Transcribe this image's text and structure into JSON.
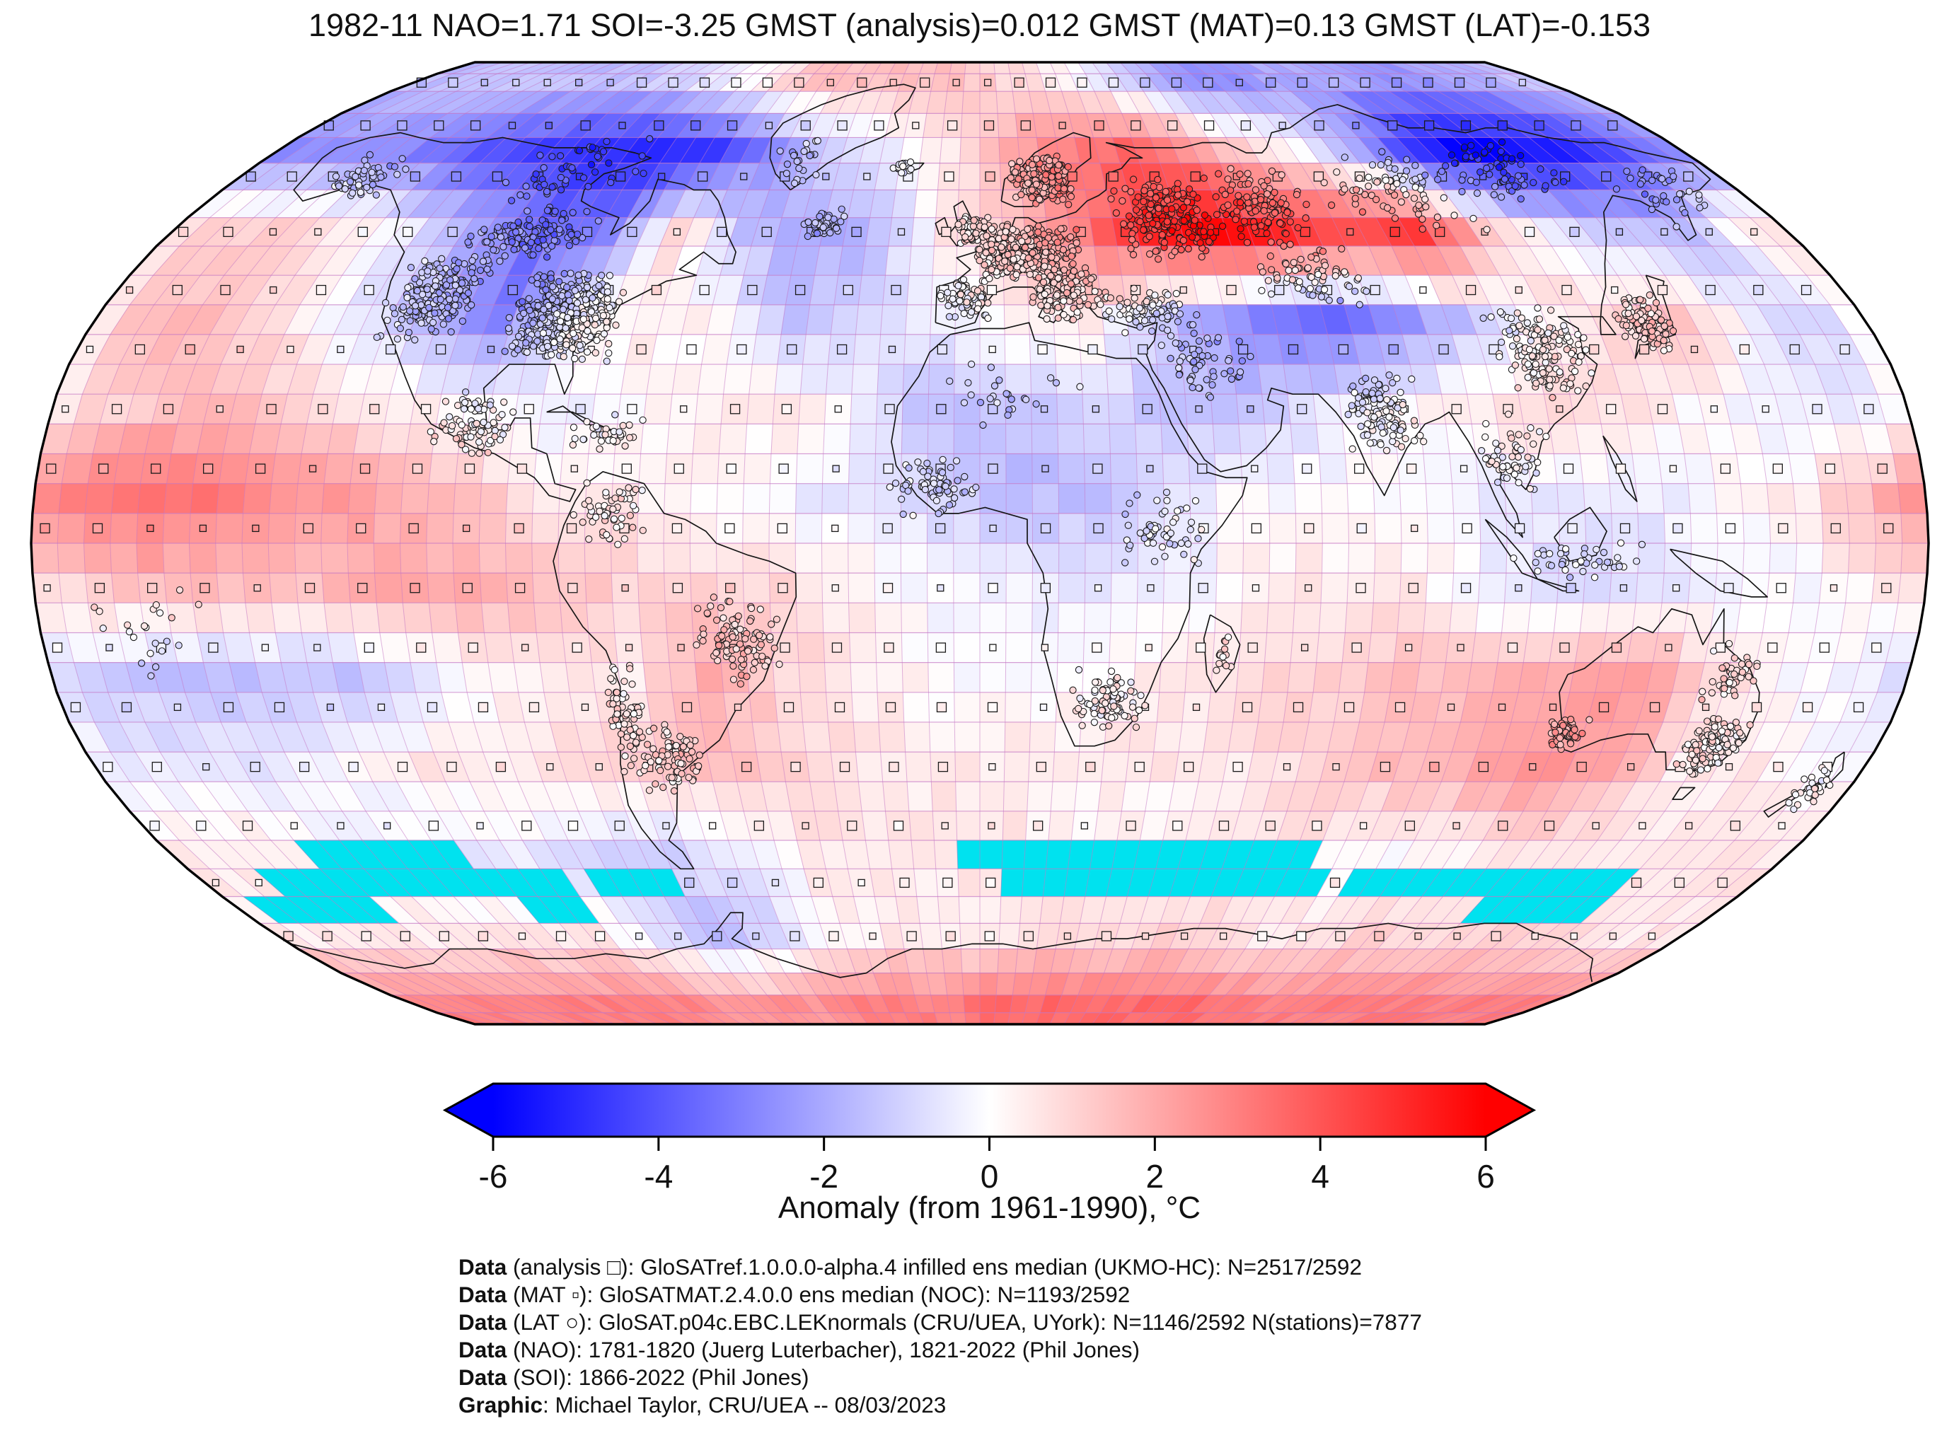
{
  "title": "1982-11 NAO=1.71 SOI=-3.25 GMST (analysis)=0.012 GMST (MAT)=0.13 GMST (LAT)=-0.153",
  "indices": {
    "date": "1982-11",
    "nao": 1.71,
    "soi": -3.25,
    "gmst_analysis": 0.012,
    "gmst_mat": 0.13,
    "gmst_lat": -0.153
  },
  "colorbar": {
    "label": "Anomaly (from 1961-1990), °C",
    "ticks": [
      -6,
      -4,
      -2,
      0,
      2,
      4,
      6
    ],
    "min": -6,
    "max": 6,
    "color_neg": "#0000ff",
    "color_mid": "#ffffff",
    "color_pos": "#ff0000"
  },
  "footer": {
    "lines": [
      {
        "label": "Data",
        "text": " (analysis □): GloSATref.1.0.0.0-alpha.4 infilled ens median (UKMO-HC): N=2517/2592"
      },
      {
        "label": "Data",
        "text": " (MAT ▫): GloSATMAT.2.4.0.0 ens median (NOC): N=1193/2592"
      },
      {
        "label": "Data",
        "text": " (LAT ○): GloSAT.p04c.EBC.LEKnormals (CRU/UEA, UYork): N=1146/2592 N(stations)=7877"
      },
      {
        "label": "Data",
        "text": " (NAO): 1781-1820 (Juerg Luterbacher), 1821-2022 (Phil Jones)"
      },
      {
        "label": "Data",
        "text": " (SOI): 1866-2022 (Phil Jones)"
      },
      {
        "label": "Graphic",
        "text": ": Michael Taylor, CRU/UEA -- 08/03/2023"
      }
    ]
  },
  "map": {
    "projection": "robinson",
    "graticule_deg": 5,
    "cell_deg": 5,
    "graticule_color": "#c478c4",
    "coast_color": "#161616",
    "border_color": "#9a9a9a",
    "outline_color": "#000000",
    "missing_color": "#00e2ef",
    "marker_stroke": "#1a1a1a",
    "missing_rects": [
      [
        -150,
        -115,
        -55,
        -50
      ],
      [
        -165,
        -100,
        -60,
        -55
      ],
      [
        -175,
        -145,
        -65,
        -60
      ],
      [
        -110,
        -95,
        -65,
        -55
      ],
      [
        -90,
        -70,
        -60,
        -55
      ],
      [
        -5,
        75,
        -55,
        -50
      ],
      [
        5,
        80,
        -60,
        -55
      ],
      [
        85,
        150,
        -60,
        -55
      ],
      [
        120,
        150,
        -65,
        -60
      ]
    ],
    "station_clusters": [
      [
        10,
        49,
        12,
        5,
        380
      ],
      [
        15,
        62,
        8,
        5,
        190
      ],
      [
        -2,
        53,
        4,
        3,
        85
      ],
      [
        -3,
        41,
        6,
        4,
        75
      ],
      [
        18,
        42,
        8,
        5,
        120
      ],
      [
        35,
        39,
        10,
        4,
        85
      ],
      [
        42,
        55,
        12,
        8,
        200
      ],
      [
        65,
        57,
        12,
        8,
        120
      ],
      [
        100,
        60,
        20,
        8,
        85
      ],
      [
        130,
        64,
        18,
        7,
        60
      ],
      [
        163,
        59,
        12,
        6,
        35
      ],
      [
        70,
        45,
        12,
        6,
        75
      ],
      [
        45,
        30,
        10,
        6,
        55
      ],
      [
        78,
        22,
        8,
        7,
        120
      ],
      [
        102,
        15,
        8,
        7,
        55
      ],
      [
        114,
        -3,
        14,
        4,
        45
      ],
      [
        112,
        32,
        10,
        8,
        150
      ],
      [
        135,
        37,
        6,
        5,
        130
      ],
      [
        -85,
        38,
        12,
        8,
        430
      ],
      [
        -113,
        41,
        10,
        8,
        200
      ],
      [
        -100,
        52,
        15,
        5,
        110
      ],
      [
        -100,
        63,
        18,
        8,
        55
      ],
      [
        -150,
        62,
        9,
        5,
        45
      ],
      [
        -98,
        20,
        8,
        6,
        80
      ],
      [
        -72,
        19,
        8,
        4,
        35
      ],
      [
        -70,
        5,
        8,
        6,
        55
      ],
      [
        -70,
        -30,
        4,
        12,
        65
      ],
      [
        -46,
        -16,
        9,
        8,
        100
      ],
      [
        -62,
        -36,
        7,
        7,
        75
      ],
      [
        -8,
        10,
        10,
        6,
        70
      ],
      [
        35,
        2,
        8,
        8,
        55
      ],
      [
        25,
        -27,
        8,
        6,
        85
      ],
      [
        5,
        25,
        15,
        6,
        25
      ],
      [
        47,
        -19,
        2,
        4,
        14
      ],
      [
        147,
        -34,
        6,
        5,
        120
      ],
      [
        117,
        -32,
        4,
        3,
        55
      ],
      [
        146,
        -22,
        6,
        6,
        45
      ],
      [
        172,
        -41,
        4,
        4,
        30
      ],
      [
        -45,
        65,
        8,
        5,
        22
      ],
      [
        -19,
        64.5,
        3,
        1.5,
        14
      ],
      [
        -160,
        -15,
        15,
        8,
        22
      ],
      [
        -35,
        54,
        5,
        3,
        55
      ]
    ]
  },
  "chart_data": {
    "type": "heatmap",
    "title": "1982-11 NAO=1.71 SOI=-3.25 GMST (analysis)=0.012 GMST (MAT)=0.13 GMST (LAT)=-0.153",
    "units": "°C",
    "baseline": "1961-1990",
    "colormap": "bwr",
    "vmin": -6,
    "vmax": 6,
    "legend": {
      "analysis": "□",
      "MAT": "▫",
      "LAT": "○",
      "missing": "cyan cells"
    },
    "lat_centers": [
      82.5,
      67.5,
      52.5,
      37.5,
      22.5,
      7.5,
      -7.5,
      -22.5,
      -37.5,
      -52.5,
      -67.5,
      -82.5
    ],
    "lon_centers": [
      -172.5,
      -157.5,
      -142.5,
      -127.5,
      -112.5,
      -97.5,
      -82.5,
      -67.5,
      -52.5,
      -37.5,
      -22.5,
      -7.5,
      7.5,
      22.5,
      37.5,
      52.5,
      67.5,
      82.5,
      97.5,
      112.5,
      127.5,
      142.5,
      157.5,
      172.5
    ],
    "values": [
      [
        -1.5,
        -1.5,
        -1.5,
        -1.5,
        -1.5,
        -1,
        -0.5,
        0.5,
        1.5,
        1.5,
        1.5,
        1.5,
        1,
        0.5,
        -0.5,
        -1.5,
        -2.5,
        -2.5,
        -2,
        -2,
        -2.5,
        -2.5,
        -2,
        -1.5
      ],
      [
        -2.5,
        -2.5,
        -3,
        -4,
        -4.5,
        -5,
        -5,
        -4.5,
        -2.5,
        -1,
        -0.5,
        0.5,
        2,
        3,
        3.5,
        2.5,
        1,
        0,
        -2,
        -5,
        -6,
        -5.5,
        -4.5,
        -3
      ],
      [
        1,
        1,
        0.5,
        -0.5,
        -2,
        -3.5,
        -3,
        1,
        -1.5,
        -2,
        -1.5,
        0.5,
        1.5,
        3,
        5,
        6,
        5,
        4,
        4.5,
        1.5,
        -0.5,
        -1.5,
        -1.5,
        0.5
      ],
      [
        1.5,
        1.5,
        1,
        -0.5,
        -1.5,
        -3,
        0,
        0.5,
        0,
        -1.5,
        -1,
        -0.5,
        0.5,
        0.5,
        -1.5,
        -2.5,
        -3.5,
        -3,
        -1.5,
        0,
        1,
        1.5,
        -0.5,
        -1
      ],
      [
        1,
        1.5,
        1.5,
        1,
        0.5,
        0,
        -0.5,
        0,
        0.5,
        0.5,
        -0.5,
        -1.5,
        -1.5,
        -1,
        -1.5,
        -1.5,
        -0.5,
        0,
        0.5,
        1,
        0.5,
        0,
        -0.5,
        -0.5
      ],
      [
        3,
        3.5,
        3,
        2.5,
        2,
        1.5,
        0.5,
        0.5,
        0,
        -0.3,
        -0.5,
        -1,
        -1.5,
        -1.5,
        -0.5,
        0,
        0,
        0,
        -0.5,
        -0.5,
        -0.5,
        0,
        0.5,
        2
      ],
      [
        1,
        1.5,
        1.5,
        1.5,
        2,
        2,
        1.5,
        1,
        1,
        1,
        0.3,
        -0.3,
        -0.3,
        -0.5,
        -0.5,
        0.5,
        0.5,
        0.5,
        -0.5,
        -1,
        -0.5,
        -0.5,
        0,
        0.5
      ],
      [
        -1,
        -1.5,
        -1.5,
        -1.5,
        -1,
        0,
        0.5,
        0.5,
        2,
        1,
        0.5,
        0,
        0,
        0,
        0.5,
        1,
        1,
        1.5,
        1.5,
        2,
        2.5,
        1,
        0,
        -0.5
      ],
      [
        -0.5,
        -0.5,
        -0.5,
        0,
        0.5,
        0.5,
        1,
        1,
        1.5,
        1,
        0.5,
        0.5,
        0.5,
        0.5,
        0.5,
        0.5,
        1,
        1.5,
        2,
        2.5,
        2,
        0.5,
        0.5,
        0
      ],
      [
        0.5,
        0.5,
        0,
        -0.5,
        -0.5,
        -0.5,
        -1,
        -1,
        -0.5,
        0.5,
        0.5,
        0.5,
        0.5,
        0,
        0,
        0.5,
        0.5,
        0,
        0,
        0.5,
        0.5,
        0.5,
        0.5,
        0.5
      ],
      [
        0.5,
        0.5,
        0.5,
        0.5,
        0.5,
        0.5,
        -0.5,
        -1.5,
        -1,
        0,
        0.5,
        0.5,
        0.5,
        1,
        1,
        1,
        0.5,
        0.5,
        1,
        1,
        1,
        1,
        0.5,
        0.5
      ],
      [
        3,
        3,
        3,
        3,
        3,
        3,
        2.5,
        2.5,
        2.5,
        3,
        3,
        3,
        3.5,
        3.5,
        3.5,
        3.5,
        3.5,
        3,
        3,
        3,
        3,
        3,
        3,
        3
      ]
    ]
  }
}
